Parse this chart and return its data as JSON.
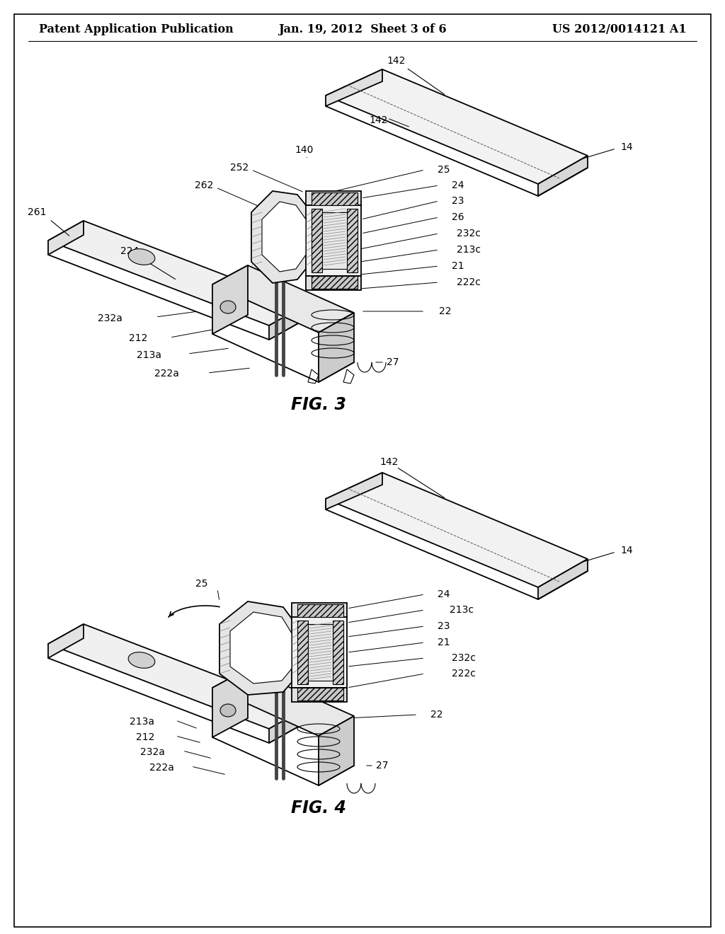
{
  "background_color": "#ffffff",
  "header_left": "Patent Application Publication",
  "header_center": "Jan. 19, 2012  Sheet 3 of 6",
  "header_right": "US 2012/0014121 A1",
  "fig3_label": "FIG. 3",
  "fig4_label": "FIG. 4",
  "annotation_fontsize": 10,
  "header_fontsize": 11.5,
  "figlabel_fontsize": 17
}
